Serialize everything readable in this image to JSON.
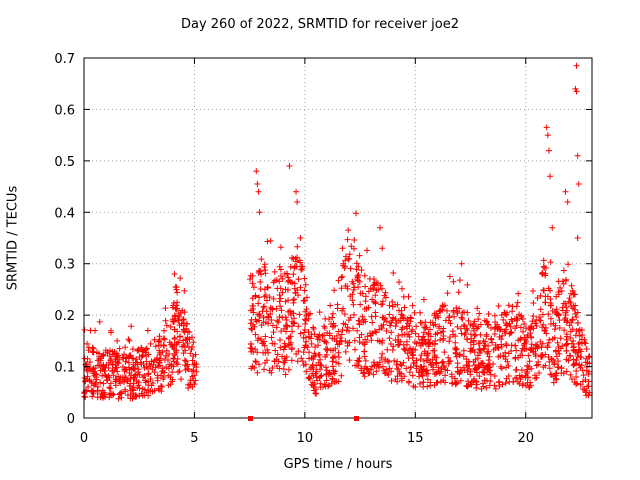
{
  "chart_data": {
    "type": "scatter",
    "title": "Day 260 of 2022, SRMTID for receiver joe2",
    "xlabel": "GPS time / hours",
    "ylabel": "SRMTID / TECUs",
    "xlim": [
      0,
      23
    ],
    "ylim": [
      0,
      0.7
    ],
    "xticks": [
      0,
      5,
      10,
      15,
      20
    ],
    "yticks": [
      0,
      0.1,
      0.2,
      0.3,
      0.4,
      0.5,
      0.6,
      0.7
    ],
    "grid": true,
    "marker": "+",
    "color": "#ff0000",
    "data_gap_markers_x": [
      7.5,
      12.3
    ],
    "series": [
      {
        "name": "SRMTID",
        "segments": [
          {
            "x_start": 0.0,
            "x_end": 5.1,
            "anchors": [
              [
                0.0,
                0.09
              ],
              [
                1.0,
                0.085
              ],
              [
                2.0,
                0.08
              ],
              [
                3.0,
                0.095
              ],
              [
                3.8,
                0.12
              ],
              [
                4.2,
                0.17
              ],
              [
                4.6,
                0.14
              ],
              [
                5.1,
                0.08
              ]
            ],
            "spikes": [
              [
                4.1,
                0.28
              ],
              [
                4.15,
                0.255
              ],
              [
                4.3,
                0.2
              ],
              [
                0.5,
                0.17
              ],
              [
                1.5,
                0.15
              ]
            ]
          },
          {
            "x_start": 7.5,
            "x_end": 22.9,
            "anchors": [
              [
                7.5,
                0.18
              ],
              [
                8.0,
                0.2
              ],
              [
                9.0,
                0.18
              ],
              [
                9.7,
                0.22
              ],
              [
                10.5,
                0.1
              ],
              [
                11.5,
                0.15
              ],
              [
                12.0,
                0.25
              ],
              [
                12.7,
                0.18
              ],
              [
                13.5,
                0.17
              ],
              [
                14.5,
                0.13
              ],
              [
                15.5,
                0.12
              ],
              [
                16.5,
                0.15
              ],
              [
                17.5,
                0.13
              ],
              [
                18.5,
                0.12
              ],
              [
                19.5,
                0.15
              ],
              [
                20.2,
                0.11
              ],
              [
                20.8,
                0.2
              ],
              [
                21.3,
                0.14
              ],
              [
                21.8,
                0.2
              ],
              [
                22.5,
                0.12
              ],
              [
                22.9,
                0.08
              ]
            ],
            "spikes": [
              [
                7.8,
                0.48
              ],
              [
                7.85,
                0.455
              ],
              [
                7.9,
                0.44
              ],
              [
                7.95,
                0.4
              ],
              [
                9.3,
                0.49
              ],
              [
                9.6,
                0.44
              ],
              [
                9.65,
                0.42
              ],
              [
                9.8,
                0.35
              ],
              [
                11.7,
                0.33
              ],
              [
                12.0,
                0.31
              ],
              [
                13.4,
                0.37
              ],
              [
                13.5,
                0.33
              ],
              [
                17.1,
                0.3
              ],
              [
                20.95,
                0.565
              ],
              [
                21.0,
                0.55
              ],
              [
                21.05,
                0.52
              ],
              [
                21.1,
                0.47
              ],
              [
                21.2,
                0.37
              ],
              [
                21.8,
                0.44
              ],
              [
                21.9,
                0.42
              ],
              [
                22.3,
                0.685
              ],
              [
                22.25,
                0.64
              ],
              [
                22.3,
                0.635
              ],
              [
                22.35,
                0.51
              ],
              [
                22.4,
                0.455
              ],
              [
                22.35,
                0.35
              ]
            ]
          }
        ]
      }
    ]
  }
}
